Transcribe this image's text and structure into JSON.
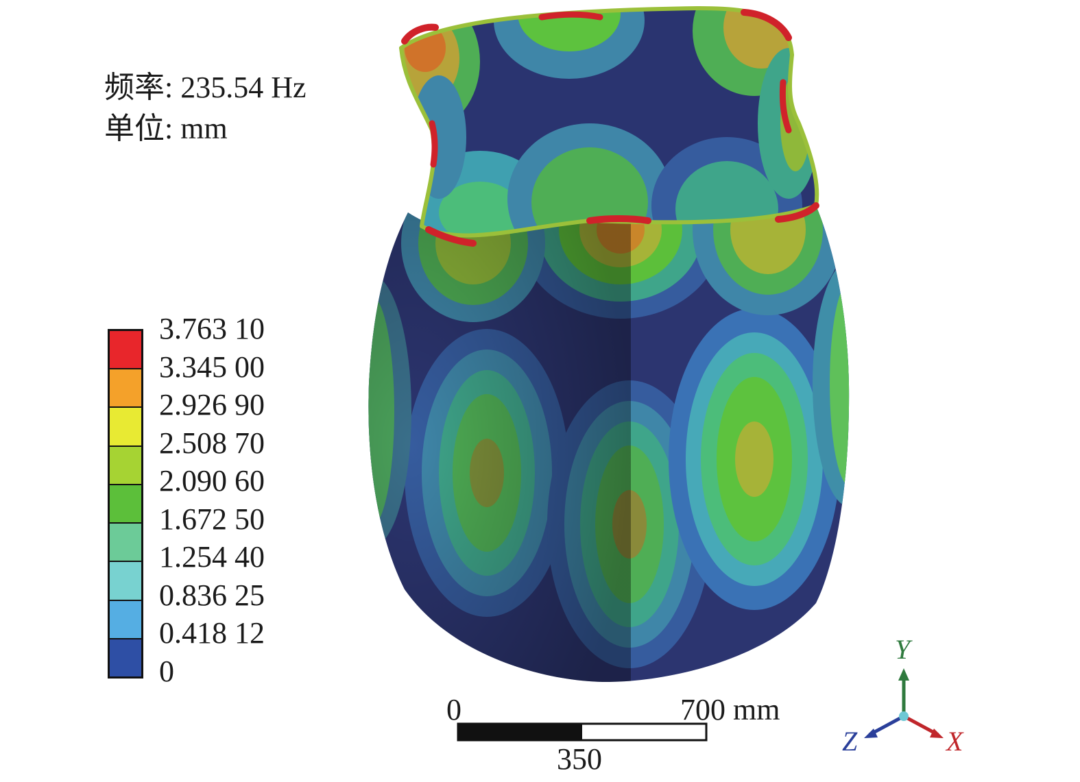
{
  "info": {
    "frequency_label": "频率:",
    "frequency_value": "235.54 Hz",
    "unit_label": "单位:",
    "unit_value": "mm"
  },
  "legend": {
    "items": [
      {
        "label": "3.763 10",
        "color": "#e8262b"
      },
      {
        "label": "3.345 00",
        "color": "#f4a12a"
      },
      {
        "label": "2.926 90",
        "color": "#e8ea33"
      },
      {
        "label": "2.508 70",
        "color": "#a6d333"
      },
      {
        "label": "2.090 60",
        "color": "#5cbf3a"
      },
      {
        "label": "1.672 50",
        "color": "#6ccb98"
      },
      {
        "label": "1.254 40",
        "color": "#78d2d0"
      },
      {
        "label": "0.836 25",
        "color": "#55aee3"
      },
      {
        "label": "0.418 12",
        "color": "#2e4fa5"
      },
      {
        "label": "0",
        "color": ""
      }
    ]
  },
  "scale_bar": {
    "start": "0",
    "mid": "350",
    "end": "700 mm"
  },
  "axes": {
    "y": {
      "label": "Y",
      "color": "#2f7a3e"
    },
    "z": {
      "label": "Z",
      "color": "#2a3f9a"
    },
    "x": {
      "label": "X",
      "color": "#c0262b"
    }
  }
}
